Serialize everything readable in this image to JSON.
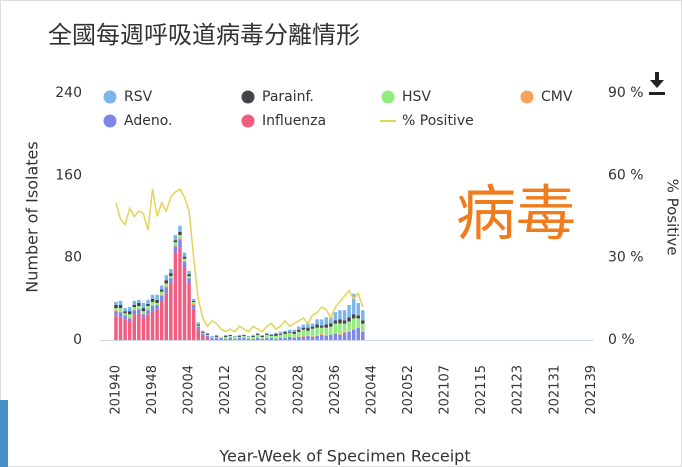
{
  "chart_data": {
    "type": "bar",
    "stacked": true,
    "title": "全國每週呼吸道病毒分離情形",
    "annotation": "病毒",
    "x_label": "Year-Week of Specimen Receipt",
    "y_label": "Number of Isolates",
    "y2_label": "% Positive",
    "categories": [
      "201940",
      null,
      null,
      null,
      null,
      null,
      null,
      null,
      "201948",
      null,
      null,
      null,
      null,
      null,
      null,
      null,
      "202004",
      null,
      null,
      null,
      null,
      null,
      null,
      null,
      "202012",
      null,
      null,
      null,
      null,
      null,
      null,
      null,
      "202020",
      null,
      null,
      null,
      null,
      null,
      null,
      null,
      "202028",
      null,
      null,
      null,
      null,
      null,
      null,
      null,
      "202036",
      null,
      null,
      null,
      null,
      null,
      null,
      null,
      "202044",
      null,
      null,
      null,
      null,
      null,
      null,
      null,
      "202052",
      null,
      null,
      null,
      null,
      null,
      null,
      null,
      "202107",
      null,
      null,
      null,
      null,
      null,
      null,
      null,
      "202115",
      null,
      null,
      null,
      null,
      null,
      null,
      null,
      "202123",
      null,
      null,
      null,
      null,
      null,
      null,
      null,
      "202131",
      null,
      null,
      null,
      null,
      null,
      null,
      null,
      "202139"
    ],
    "ylim": [
      0,
      240
    ],
    "yticks": [
      0,
      80,
      160,
      240
    ],
    "y2lim": [
      0,
      90
    ],
    "y2ticks": [
      {
        "value": 0,
        "label": "0 %"
      },
      {
        "value": 30,
        "label": "30 %"
      },
      {
        "value": 60,
        "label": "60 %"
      },
      {
        "value": 90,
        "label": "90 %"
      }
    ],
    "series": [
      {
        "name": "RSV",
        "color": "#7cb5ec",
        "values": [
          3,
          4,
          3,
          4,
          4,
          3,
          5,
          4,
          4,
          5,
          4,
          5,
          4,
          5,
          6,
          4,
          3,
          2,
          2,
          1,
          1,
          1,
          1,
          0,
          1,
          0,
          1,
          1,
          0,
          1,
          1,
          1,
          1,
          1,
          1,
          1,
          2,
          1,
          2,
          2,
          3,
          3,
          4,
          3,
          5,
          6,
          7,
          6,
          8,
          9,
          10,
          12,
          20,
          12,
          10,
          null,
          null,
          null,
          null,
          null,
          null,
          null,
          null,
          null,
          null,
          null,
          null,
          null,
          null,
          null,
          null,
          null,
          null,
          null,
          null,
          null,
          null,
          null,
          null,
          null,
          null,
          null,
          null,
          null,
          null,
          null,
          null,
          null,
          null,
          null,
          null,
          null,
          null,
          null,
          null,
          null,
          null,
          null,
          null,
          null,
          null,
          null,
          null,
          null,
          null
        ]
      },
      {
        "name": "Parainf.",
        "color": "#434348",
        "values": [
          3,
          3,
          2,
          3,
          2,
          3,
          3,
          2,
          3,
          3,
          2,
          3,
          3,
          2,
          3,
          2,
          2,
          1,
          1,
          1,
          1,
          0,
          1,
          0,
          1,
          1,
          0,
          1,
          1,
          0,
          1,
          1,
          1,
          1,
          1,
          2,
          1,
          2,
          1,
          2,
          2,
          2,
          3,
          2,
          3,
          2,
          3,
          3,
          3,
          4,
          3,
          4,
          4,
          3,
          3,
          null,
          null,
          null,
          null,
          null,
          null,
          null,
          null,
          null,
          null,
          null,
          null,
          null,
          null,
          null,
          null,
          null,
          null,
          null,
          null,
          null,
          null,
          null,
          null,
          null,
          null,
          null,
          null,
          null,
          null,
          null,
          null,
          null,
          null,
          null,
          null,
          null,
          null,
          null,
          null,
          null,
          null,
          null,
          null,
          null,
          null,
          null,
          null,
          null,
          null
        ]
      },
      {
        "name": "HSV",
        "color": "#90ed7d",
        "values": [
          2,
          3,
          2,
          3,
          2,
          3,
          2,
          3,
          3,
          2,
          3,
          3,
          2,
          3,
          3,
          2,
          2,
          2,
          1,
          1,
          1,
          1,
          1,
          1,
          2,
          2,
          2,
          1,
          2,
          2,
          2,
          3,
          2,
          3,
          2,
          3,
          3,
          4,
          4,
          3,
          5,
          6,
          5,
          7,
          8,
          6,
          7,
          8,
          9,
          10,
          8,
          9,
          10,
          9,
          7,
          null,
          null,
          null,
          null,
          null,
          null,
          null,
          null,
          null,
          null,
          null,
          null,
          null,
          null,
          null,
          null,
          null,
          null,
          null,
          null,
          null,
          null,
          null,
          null,
          null,
          null,
          null,
          null,
          null,
          null,
          null,
          null,
          null,
          null,
          null,
          null,
          null,
          null,
          null,
          null,
          null,
          null,
          null,
          null,
          null,
          null,
          null,
          null,
          null,
          null
        ]
      },
      {
        "name": "CMV",
        "color": "#f7a35c",
        "values": [
          1,
          1,
          0,
          1,
          1,
          0,
          1,
          1,
          1,
          0,
          1,
          1,
          0,
          1,
          1,
          1,
          0,
          1,
          0,
          0,
          0,
          0,
          0,
          0,
          0,
          0,
          0,
          0,
          0,
          0,
          0,
          0,
          0,
          0,
          0,
          0,
          0,
          0,
          0,
          1,
          0,
          1,
          0,
          1,
          0,
          1,
          1,
          0,
          1,
          1,
          1,
          1,
          1,
          0,
          1,
          null,
          null,
          null,
          null,
          null,
          null,
          null,
          null,
          null,
          null,
          null,
          null,
          null,
          null,
          null,
          null,
          null,
          null,
          null,
          null,
          null,
          null,
          null,
          null,
          null,
          null,
          null,
          null,
          null,
          null,
          null,
          null,
          null,
          null,
          null,
          null,
          null,
          null,
          null,
          null,
          null,
          null,
          null,
          null,
          null,
          null,
          null,
          null,
          null,
          null
        ]
      },
      {
        "name": "Adeno.",
        "color": "#8085e9",
        "values": [
          4,
          5,
          4,
          3,
          5,
          4,
          3,
          4,
          5,
          4,
          5,
          6,
          5,
          6,
          8,
          6,
          5,
          4,
          3,
          2,
          2,
          1,
          1,
          1,
          1,
          2,
          1,
          1,
          2,
          1,
          1,
          2,
          1,
          2,
          2,
          1,
          2,
          2,
          3,
          2,
          3,
          3,
          4,
          3,
          4,
          5,
          4,
          5,
          6,
          5,
          7,
          8,
          10,
          12,
          8,
          null,
          null,
          null,
          null,
          null,
          null,
          null,
          null,
          null,
          null,
          null,
          null,
          null,
          null,
          null,
          null,
          null,
          null,
          null,
          null,
          null,
          null,
          null,
          null,
          null,
          null,
          null,
          null,
          null,
          null,
          null,
          null,
          null,
          null,
          null,
          null,
          null,
          null,
          null,
          null,
          null,
          null,
          null,
          null,
          null,
          null,
          null,
          null,
          null,
          null
        ]
      },
      {
        "name": "Influenza",
        "color": "#f15c80",
        "values": [
          24,
          22,
          20,
          18,
          24,
          26,
          22,
          25,
          28,
          30,
          38,
          45,
          55,
          85,
          90,
          70,
          55,
          30,
          10,
          4,
          2,
          1,
          1,
          1,
          0,
          0,
          0,
          1,
          0,
          0,
          0,
          0,
          0,
          0,
          0,
          0,
          0,
          0,
          0,
          0,
          0,
          0,
          0,
          0,
          0,
          0,
          0,
          0,
          0,
          0,
          0,
          0,
          0,
          0,
          0,
          null,
          null,
          null,
          null,
          null,
          null,
          null,
          null,
          null,
          null,
          null,
          null,
          null,
          null,
          null,
          null,
          null,
          null,
          null,
          null,
          null,
          null,
          null,
          null,
          null,
          null,
          null,
          null,
          null,
          null,
          null,
          null,
          null,
          null,
          null,
          null,
          null,
          null,
          null,
          null,
          null,
          null,
          null,
          null,
          null,
          null,
          null,
          null,
          null,
          null
        ]
      },
      {
        "name": "% Positive",
        "color": "#e4d354",
        "type": "line",
        "axis": "y2",
        "values": [
          50,
          44,
          42,
          48,
          45,
          47,
          46,
          40,
          55,
          45,
          50,
          47,
          52,
          54,
          55,
          52,
          47,
          30,
          15,
          8,
          5,
          7,
          6,
          4,
          3,
          4,
          3,
          5,
          4,
          3,
          5,
          4,
          3,
          5,
          6,
          4,
          5,
          7,
          5,
          6,
          7,
          8,
          6,
          9,
          10,
          12,
          11,
          8,
          12,
          14,
          16,
          18,
          15,
          17,
          12,
          null,
          null,
          null,
          null,
          null,
          null,
          null,
          null,
          null,
          null,
          null,
          null,
          null,
          null,
          null,
          null,
          null,
          null,
          null,
          null,
          null,
          null,
          null,
          null,
          null,
          null,
          null,
          null,
          null,
          null,
          null,
          null,
          null,
          null,
          null,
          null,
          null,
          null,
          null,
          null,
          null,
          null,
          null,
          null,
          null,
          null,
          null,
          null,
          null,
          null
        ]
      }
    ]
  }
}
